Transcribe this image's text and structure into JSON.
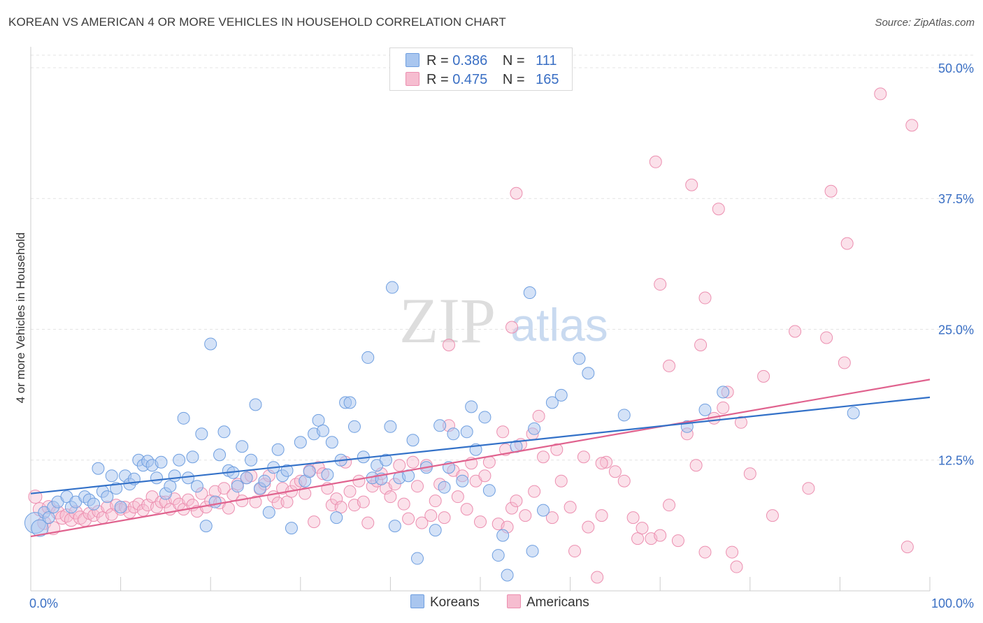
{
  "title": "KOREAN VS AMERICAN 4 OR MORE VEHICLES IN HOUSEHOLD CORRELATION CHART",
  "source": "Source: ZipAtlas.com",
  "watermark": {
    "zip": "ZIP",
    "atlas": "atlas"
  },
  "colors": {
    "koreans_fill": "#a9c6ef",
    "koreans_stroke": "#6f9fe0",
    "koreans_line": "#3371c8",
    "americans_fill": "#f6bdd0",
    "americans_stroke": "#ec8fb0",
    "americans_line": "#e0628e",
    "value_text": "#3a6fc4"
  },
  "stats": {
    "koreans": {
      "r_label": "R =",
      "r": "0.386",
      "n_label": "N =",
      "n": "111"
    },
    "americans": {
      "r_label": "R =",
      "r": "0.475",
      "n_label": "N =",
      "n": "165"
    }
  },
  "legend": {
    "koreans": "Koreans",
    "americans": "Americans"
  },
  "chart_data": {
    "type": "scatter",
    "title": "KOREAN VS AMERICAN 4 OR MORE VEHICLES IN HOUSEHOLD CORRELATION CHART",
    "xlabel": "",
    "ylabel": "4 or more Vehicles in Household",
    "xlim": [
      0,
      100
    ],
    "ylim": [
      0,
      52
    ],
    "x_tick_labels": [
      "0.0%",
      "100.0%"
    ],
    "y_ticks": [
      12.5,
      25.0,
      37.5,
      50.0
    ],
    "y_tick_labels": [
      "12.5%",
      "25.0%",
      "37.5%",
      "50.0%"
    ],
    "grid": true,
    "legend_position": "bottom-center",
    "series": [
      {
        "name": "Koreans",
        "r": 0.386,
        "n": 111,
        "trend": {
          "x": [
            0,
            100
          ],
          "y": [
            9.3,
            18.5
          ]
        },
        "points": [
          [
            0.5,
            6.5
          ],
          [
            1.0,
            6.0
          ],
          [
            1.5,
            7.5
          ],
          [
            2.0,
            7.0
          ],
          [
            2.5,
            8.0
          ],
          [
            3.0,
            8.5
          ],
          [
            4.0,
            9.0
          ],
          [
            4.5,
            8.0
          ],
          [
            5.0,
            8.5
          ],
          [
            6.0,
            9.0
          ],
          [
            6.5,
            8.7
          ],
          [
            7.0,
            8.3
          ],
          [
            7.5,
            11.7
          ],
          [
            8.0,
            9.5
          ],
          [
            8.5,
            9.0
          ],
          [
            9.0,
            11.0
          ],
          [
            9.5,
            9.8
          ],
          [
            10.0,
            8.0
          ],
          [
            10.5,
            11.0
          ],
          [
            11.0,
            10.2
          ],
          [
            11.5,
            10.7
          ],
          [
            12.0,
            12.5
          ],
          [
            12.5,
            12.0
          ],
          [
            13.0,
            12.4
          ],
          [
            13.5,
            12.0
          ],
          [
            14.0,
            10.8
          ],
          [
            14.5,
            12.3
          ],
          [
            15.0,
            9.3
          ],
          [
            15.5,
            10.0
          ],
          [
            16.0,
            11.0
          ],
          [
            16.5,
            12.5
          ],
          [
            17.0,
            16.5
          ],
          [
            17.5,
            10.8
          ],
          [
            18.0,
            12.8
          ],
          [
            18.5,
            10.0
          ],
          [
            19.0,
            15.0
          ],
          [
            19.5,
            6.2
          ],
          [
            20.0,
            23.6
          ],
          [
            20.5,
            8.5
          ],
          [
            21.0,
            13.0
          ],
          [
            21.5,
            15.2
          ],
          [
            22.0,
            11.5
          ],
          [
            22.5,
            11.3
          ],
          [
            23.0,
            10.0
          ],
          [
            23.5,
            13.8
          ],
          [
            24.0,
            10.8
          ],
          [
            24.5,
            12.5
          ],
          [
            25.0,
            17.8
          ],
          [
            25.5,
            9.8
          ],
          [
            26.0,
            10.5
          ],
          [
            26.5,
            7.5
          ],
          [
            27.0,
            11.8
          ],
          [
            27.5,
            13.5
          ],
          [
            28.0,
            11.0
          ],
          [
            28.5,
            11.5
          ],
          [
            29.0,
            6.0
          ],
          [
            30.0,
            14.2
          ],
          [
            30.5,
            10.5
          ],
          [
            31.0,
            11.4
          ],
          [
            31.5,
            15.0
          ],
          [
            32.0,
            16.3
          ],
          [
            32.5,
            15.3
          ],
          [
            33.0,
            11.1
          ],
          [
            33.5,
            14.2
          ],
          [
            34.0,
            7.0
          ],
          [
            34.5,
            12.5
          ],
          [
            35.0,
            18.0
          ],
          [
            35.5,
            18.0
          ],
          [
            36.0,
            15.7
          ],
          [
            37.0,
            12.8
          ],
          [
            37.5,
            22.3
          ],
          [
            38.0,
            10.8
          ],
          [
            38.5,
            12.0
          ],
          [
            39.0,
            10.7
          ],
          [
            39.5,
            12.5
          ],
          [
            40.0,
            15.7
          ],
          [
            40.5,
            6.2
          ],
          [
            40.2,
            29.0
          ],
          [
            41.0,
            10.8
          ],
          [
            42.0,
            11.0
          ],
          [
            42.5,
            14.4
          ],
          [
            43.0,
            3.1
          ],
          [
            44.0,
            11.8
          ],
          [
            45.0,
            5.8
          ],
          [
            45.5,
            15.8
          ],
          [
            46.0,
            9.9
          ],
          [
            46.5,
            11.8
          ],
          [
            47.0,
            15.0
          ],
          [
            48.0,
            10.5
          ],
          [
            48.5,
            15.2
          ],
          [
            49.0,
            17.6
          ],
          [
            49.5,
            13.5
          ],
          [
            50.5,
            16.6
          ],
          [
            51.0,
            9.6
          ],
          [
            52.0,
            3.4
          ],
          [
            52.5,
            5.3
          ],
          [
            53.0,
            1.5
          ],
          [
            54.0,
            13.8
          ],
          [
            55.5,
            28.5
          ],
          [
            55.8,
            3.8
          ],
          [
            56.0,
            15.5
          ],
          [
            57.0,
            7.7
          ],
          [
            58.0,
            18.0
          ],
          [
            59.0,
            18.7
          ],
          [
            61.0,
            22.2
          ],
          [
            62.0,
            20.8
          ],
          [
            66.0,
            16.8
          ],
          [
            73.0,
            15.7
          ],
          [
            75.0,
            17.3
          ],
          [
            77.0,
            19.0
          ],
          [
            91.5,
            17.0
          ]
        ]
      },
      {
        "name": "Americans",
        "r": 0.475,
        "n": 165,
        "trend": {
          "x": [
            0,
            100
          ],
          "y": [
            5.2,
            20.2
          ]
        },
        "points": [
          [
            0.5,
            9.0
          ],
          [
            1.0,
            7.8
          ],
          [
            1.5,
            6.5
          ],
          [
            2.0,
            8.0
          ],
          [
            2.5,
            6.0
          ],
          [
            3.0,
            7.5
          ],
          [
            3.5,
            7.0
          ],
          [
            4.0,
            7.2
          ],
          [
            4.5,
            6.8
          ],
          [
            5.0,
            7.5
          ],
          [
            5.5,
            7.0
          ],
          [
            6.0,
            6.8
          ],
          [
            6.5,
            7.4
          ],
          [
            7.0,
            7.2
          ],
          [
            7.5,
            7.6
          ],
          [
            8.0,
            7.0
          ],
          [
            8.5,
            8.0
          ],
          [
            9.0,
            7.3
          ],
          [
            9.5,
            8.2
          ],
          [
            10.0,
            7.8
          ],
          [
            10.5,
            8.0
          ],
          [
            11.0,
            7.5
          ],
          [
            11.5,
            8.0
          ],
          [
            12.0,
            8.3
          ],
          [
            12.5,
            7.7
          ],
          [
            13.0,
            8.2
          ],
          [
            13.5,
            9.0
          ],
          [
            14.0,
            8.0
          ],
          [
            14.5,
            8.5
          ],
          [
            15.0,
            8.5
          ],
          [
            15.5,
            7.8
          ],
          [
            16.0,
            8.8
          ],
          [
            16.5,
            8.3
          ],
          [
            17.0,
            7.8
          ],
          [
            17.5,
            8.7
          ],
          [
            18.0,
            8.2
          ],
          [
            18.5,
            7.6
          ],
          [
            19.0,
            9.3
          ],
          [
            19.5,
            8.0
          ],
          [
            20.0,
            8.6
          ],
          [
            20.5,
            9.5
          ],
          [
            21.0,
            8.4
          ],
          [
            21.5,
            9.8
          ],
          [
            22.0,
            7.9
          ],
          [
            22.5,
            9.2
          ],
          [
            23.0,
            10.2
          ],
          [
            23.5,
            8.6
          ],
          [
            24.0,
            10.8
          ],
          [
            24.5,
            11.0
          ],
          [
            25.0,
            8.5
          ],
          [
            25.5,
            9.7
          ],
          [
            26.0,
            10.2
          ],
          [
            26.5,
            11.0
          ],
          [
            27.0,
            9.0
          ],
          [
            27.5,
            8.4
          ],
          [
            28.0,
            9.8
          ],
          [
            28.5,
            8.5
          ],
          [
            29.0,
            9.5
          ],
          [
            29.5,
            10.2
          ],
          [
            30.0,
            10.5
          ],
          [
            30.5,
            9.3
          ],
          [
            31.0,
            11.5
          ],
          [
            31.5,
            6.6
          ],
          [
            32.0,
            11.8
          ],
          [
            32.5,
            11.2
          ],
          [
            33.0,
            9.8
          ],
          [
            33.5,
            8.2
          ],
          [
            34.0,
            8.8
          ],
          [
            34.5,
            8.0
          ],
          [
            35.0,
            12.3
          ],
          [
            35.5,
            9.5
          ],
          [
            36.0,
            8.2
          ],
          [
            36.5,
            10.5
          ],
          [
            37.0,
            8.5
          ],
          [
            37.5,
            6.5
          ],
          [
            38.0,
            10.0
          ],
          [
            38.5,
            10.5
          ],
          [
            39.0,
            11.2
          ],
          [
            39.5,
            9.8
          ],
          [
            40.0,
            9.0
          ],
          [
            40.5,
            10.2
          ],
          [
            41.0,
            12.0
          ],
          [
            41.5,
            8.3
          ],
          [
            42.0,
            6.9
          ],
          [
            42.5,
            12.3
          ],
          [
            43.0,
            10.0
          ],
          [
            43.5,
            6.5
          ],
          [
            44.0,
            12.0
          ],
          [
            44.5,
            7.2
          ],
          [
            45.0,
            8.6
          ],
          [
            45.5,
            10.2
          ],
          [
            46.0,
            7.0
          ],
          [
            46.5,
            15.8
          ],
          [
            47.0,
            11.5
          ],
          [
            47.5,
            9.0
          ],
          [
            48.0,
            11.0
          ],
          [
            48.5,
            7.8
          ],
          [
            49.0,
            12.2
          ],
          [
            49.5,
            10.5
          ],
          [
            50.0,
            6.6
          ],
          [
            50.5,
            11.0
          ],
          [
            51.0,
            12.3
          ],
          [
            52.0,
            6.4
          ],
          [
            52.5,
            15.2
          ],
          [
            53.0,
            6.1
          ],
          [
            53.5,
            7.9
          ],
          [
            54.0,
            8.6
          ],
          [
            54.5,
            14.0
          ],
          [
            55.0,
            7.2
          ],
          [
            56.0,
            9.5
          ],
          [
            56.5,
            16.7
          ],
          [
            57.0,
            12.8
          ],
          [
            58.0,
            7.0
          ],
          [
            58.5,
            13.5
          ],
          [
            59.0,
            10.5
          ],
          [
            60.0,
            8.0
          ],
          [
            60.5,
            3.8
          ],
          [
            61.5,
            12.8
          ],
          [
            62.0,
            6.1
          ],
          [
            63.0,
            1.3
          ],
          [
            63.5,
            7.2
          ],
          [
            64.0,
            12.3
          ],
          [
            65.0,
            11.4
          ],
          [
            66.0,
            10.5
          ],
          [
            67.0,
            7.0
          ],
          [
            67.5,
            5.0
          ],
          [
            68.0,
            6.0
          ],
          [
            69.0,
            5.0
          ],
          [
            70.0,
            5.3
          ],
          [
            71.0,
            8.2
          ],
          [
            72.0,
            4.8
          ],
          [
            73.0,
            15.0
          ],
          [
            74.0,
            12.0
          ],
          [
            75.0,
            3.7
          ],
          [
            76.0,
            16.5
          ],
          [
            77.0,
            17.5
          ],
          [
            77.5,
            19.0
          ],
          [
            78.0,
            3.7
          ],
          [
            78.5,
            2.3
          ],
          [
            79.0,
            16.1
          ],
          [
            80.0,
            11.2
          ],
          [
            81.5,
            20.5
          ],
          [
            82.5,
            7.2
          ],
          [
            53.5,
            25.2
          ],
          [
            46.5,
            23.5
          ],
          [
            54.0,
            38.0
          ],
          [
            69.5,
            41.0
          ],
          [
            73.5,
            38.8
          ],
          [
            76.5,
            36.5
          ],
          [
            75.0,
            28.0
          ],
          [
            70.0,
            29.3
          ],
          [
            71.0,
            21.5
          ],
          [
            74.5,
            23.5
          ],
          [
            85.0,
            24.8
          ],
          [
            88.5,
            24.2
          ],
          [
            90.5,
            21.8
          ],
          [
            86.5,
            9.8
          ],
          [
            89.0,
            38.2
          ],
          [
            90.8,
            33.2
          ],
          [
            94.5,
            47.5
          ],
          [
            98.0,
            44.5
          ],
          [
            97.5,
            4.2
          ],
          [
            52.8,
            13.5
          ],
          [
            55.8,
            15.0
          ],
          [
            63.5,
            12.2
          ]
        ]
      }
    ]
  }
}
